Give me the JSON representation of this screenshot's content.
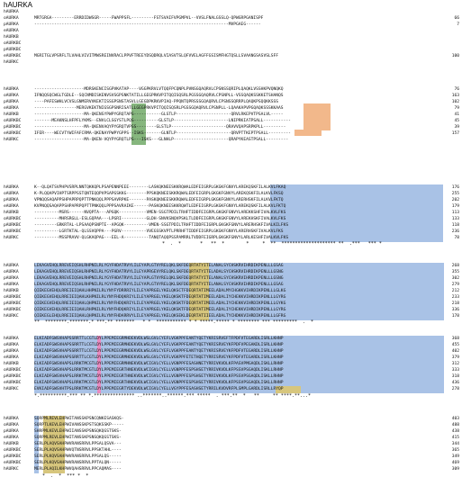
{
  "title": "hAURKA",
  "colors": {
    "blue": "#a9c2e6",
    "green": "#86b67e",
    "orange": "#f2b88b",
    "khaki": "#d7c67d",
    "pink": "#e98bc0"
  },
  "blocks": [
    {
      "rows": [
        {
          "name": "hAURKA",
          "seq": "",
          "num": ""
        },
        {
          "name": "oAURKA",
          "seq": "MRTGRGA---------ERRDIDWSGR-----FWAPPSFL---------FSTSVAIFVPGMPVL--VVSLFNALGSSLQ-QPWGRPGANISPF",
          "num": "66"
        },
        {
          "name": "pAURKA",
          "seq": "------------------------------------------------------------------------------MVPGAEG------",
          "num": "7"
        },
        {
          "name": "eAURKA",
          "seq": "",
          "num": ""
        },
        {
          "name": "hAURKB",
          "seq": "",
          "num": ""
        },
        {
          "name": "oAURKBC",
          "seq": "",
          "num": ""
        },
        {
          "name": "pAURKBC",
          "seq": "",
          "num": ""
        },
        {
          "name": "eAURKBC",
          "seq": "MGRITGLVPSRFLTLVAHLVIVITMWSREINVRACLPPVFTREEYDSQDRQLVIASVTSLQFVVELAGFFGSISMFHGTQSLLSVAANGSASVSLSFF",
          "num": "100"
        },
        {
          "name": "hAURKC",
          "seq": "",
          "num": ""
        }
      ],
      "consensus": ""
    },
    {
      "rows": [
        {
          "name": "hAURKA",
          "seq": "--------------------MDRSKENCISGPVKATAP----VGGPKRVLVTQQFPCQNPLPVNSGQAQRVLCPSNSSQRIPLQAQKLVSSHKPVQNQKQ",
          "num": "76"
        },
        {
          "name": "oAURKA",
          "seq": "IFNQQSQCWGLTGDLE--SQCNMDISKENVSVSGPSNKTATILLGEGPRKVPITQQISQSRLPGSSGQAQRVLCPSNPLL-VSSQAQKSSKKETSHANQS",
          "num": "163"
        },
        {
          "name": "pAURKA",
          "seq": "----PAFESWHLVCVSLGNMERVVKEKTISSGPSNSTASVLLGEGDPKRKVPIAQ-PPQNTQPRSSSGQAQRVLCPSNSSQRRPLQAQKPSQQKKSSS",
          "num": "102"
        },
        {
          "name": "eAURKA",
          "seq": "-----------------MERGVKEKTNIGSGPSNRISATLLGEGPRKVPITQQISQSRLPGSSGQAQRVLCPSNPLL-LQAAKAPVPGQAQKSSSKKAAS",
          "num": "79"
        },
        {
          "name": "hAURKB",
          "seq": "--------------------MA-QKENSYPWPYGRQTAPS-----------GLSTLP----------------------QRVLRKEPVTPSALVL-----",
          "num": "41"
        },
        {
          "name": "oAURKBC",
          "seq": "-------MEAKNSLHFPFLYKMS--ENVLCLSGYSTLPQS----------GLSTLP----------------------LNIPRKIATPSALL-----------",
          "num": "45"
        },
        {
          "name": "pAURKBC",
          "seq": "--------------------MA-QKENVAQYPYGRQTVPSS--------GLSTLP----------------------QRAVVQAPSRPKPLL---------",
          "num": "39"
        },
        {
          "name": "eAURKBC",
          "seq": "IFER----WECVTYWIFAFCRMA-QKENAYPWPYGPPS--ISKS-------GLNTLP----------------------QRVPTTKEPTPSALL---------",
          "num": "157"
        },
        {
          "name": "hAURKC",
          "seq": "--------------------MA-QKEN-VQYPYGRQTLPS---ISKS---GLNHLP----------------------QRAPYKEASTPSALL---------",
          "num": ""
        }
      ],
      "consensus": ""
    },
    {
      "rows": [
        {
          "name": "hAURKA",
          "seq": "K--QLQATSVPHPVSRPLNNTQKKQPLPSAPENNPEEE--------LASKQKNEESKKRQWALEDFEIGRPLGKGKFGNVYLAREKQSKFILALKVLFKAQ",
          "num": "176"
        },
        {
          "name": "oAURKA",
          "seq": "K-PLQQAPVIHPTSRPPSSTQNTEQQPVPSAPGSKKG--------PPSKQKNEESKKRQWALEDFEIGRPLGKGKFGNVYLAREKQSKFILALKVLFKSQ",
          "num": "255"
        },
        {
          "name": "pAURKA",
          "seq": "VPNQQSAQAPPSHPAPRPQPTTPNKQQLPPPSAVRPKE-------PASKQKNEESKKRQWALEDFEIGRPLGKGKFGNVYLARERHSKFILALKVLFKTQ",
          "num": "202"
        },
        {
          "name": "eAURKA",
          "seq": "KVPNQQSAQAPPSHPAPRPQPTTPNKQQLPPPSAVRAIKE------PASKQKNEESKKRQWTLEDFEIGRPLGKGKFGNVYLAREKQSKFILALKVLFKTQ",
          "num": "179"
        },
        {
          "name": "hAURKB",
          "seq": "----------MSRS------NVQPTA---APGQK-----------VMEN-SSGTPDILTRHFTIDDFEIGRPLGKGKFGNVYLAREKKSHFIVALKVLFKS",
          "num": "113"
        },
        {
          "name": "oAURKBC",
          "seq": "----------MHRSRGLL-ESLGQPAA---LPGRI----------GLDH-SNVKSNQVPSKLTLDDFEIGRPLGKGKFGNVYLAREKHSKFIVALKVLFKS",
          "num": "133"
        },
        {
          "name": "pAURKBC",
          "seq": "---------GRKRTAL-LPSAAQPSNPTE--APGQK----------VMEN-SSGTPDILTRHFTIDDFEIGRPLGKGKFGNVYLARERHSKFIVALKILFKS",
          "num": "118"
        },
        {
          "name": "eAURKBC",
          "seq": "----------LGRTKTAL-QLSSVQPPA---PGRV----------VVEGSSKVPTLPRRHFTIDDFEIGRPLGKGKFGNVYLARERHSKFIVALKVLFKS",
          "num": "236"
        },
        {
          "name": "hAURKC",
          "seq": "----------MSSPRAVV-QLGKAQPAG---EEL-A----------TANQTAQQPSSPAMRRLTVDDFEIGRPLGKGKFGNVYLARLKESHFIVALKVLFKS",
          "num": "78"
        }
      ],
      "consensus": "*  .  *       *   **  *        *     *  **  ******************** **  .***   *** *"
    },
    {
      "rows": [
        {
          "name": "hAURKA",
          "seq": "LEKAGVEHQLRREVEIQSHLRHPNILRLYGYFHDATRVYLILEYAPLGTVYRELQKLSKFDEQRTATYITELANALSYCHSKRVIHRDIKPENLLLGSAG",
          "num": "268"
        },
        {
          "name": "oAURKA",
          "seq": "LEKAGVEHQLRREVEIQSHLRHPNILRLYGYFHDATRVYLILEYAPRGEVYRELQKLSKFDEQRTATYITELADALSYCHSKRVIHRDIKPENLLLGSNG",
          "num": "355"
        },
        {
          "name": "pAURKA",
          "seq": "LEKAGVEHQLRREVEIQSHLRHPNILRLYGYFHDATRVYLILEYAPLGTVYRELQKLSKFDEQRTATYITELANALSYCHSKRVIHRDIKPENLLLGSNG",
          "num": "302"
        },
        {
          "name": "eAURKA",
          "seq": "LEKAGVEHQLRREVEIQSHLRHPNILRLYGYFHDATRVYLILEYAPLGTVYRELQKLSKFDEQRTATYITELANALSYCHSKRVIHRDIKPENLLLGSAG",
          "num": "279"
        },
        {
          "name": "hAURKB",
          "seq": "QIEKEGVEHQLRREIEIQAHLHHPNILRLYNYFYDRRRIYLILEYAPRGELYKELQKSCTFDEQRTATIMEELADALMYCHGKKVIHRDIKPENLLLGLKG",
          "num": "212"
        },
        {
          "name": "oAURKBC",
          "seq": "QIEKEGVEHQLRREIEIQAHLKHPNILRLYNYFHDQKRIYLILEYAPRGELYKELQKSKTFDEQRTATIMEELADALIYCHEKKVIHRDIKPENLLLGYRG",
          "num": "233"
        },
        {
          "name": "pAURKBC",
          "seq": "QIEKEGVEHQLRREIEIQAHLQHPNILRLYNYFHDQKRIYLILEYAPRGELYKELQKSKTFDEQRTATIMEELADALIYCHEKKVIHRDIKPENLLLGYKG",
          "num": "218"
        },
        {
          "name": "eAURKBC",
          "seq": "QIEKEGVEHQLRREIEIQAHLRHPNILRLYNYFHDQKRIYLILEYAPRGELYKELQKSKTFDEQRTATIMEELADALIYCHEKKVIHRDIKPENLLLGYRG",
          "num": "336"
        },
        {
          "name": "hAURKC",
          "seq": "QIEKEGLEHQLRREIEIQAHLQHPNILRLYNYFHDARRVYLILEYAPRGELYKELQKSEKLDEQRTATIIEELADALTYCHDKKVIHRDIKPENLLLGFRG",
          "num": "178"
        }
      ],
      "consensus": "**  ********.*******.* ***.** *******   * *  *********** * * *****.***** * ******** *** *********  .  *"
    },
    {
      "rows": [
        {
          "name": "hAURKA",
          "seq": "ELKIADFGWSVHAPSSRRTTLCGTLDYLPPEMIEGRMHDEKVDLWSLGVLCYEFLVGKPPFEANTYQETYKRISRVEFTFPDFVTEGARDLISRLLKHNP",
          "num": "368"
        },
        {
          "name": "oAURKA",
          "seq": "ELKIADFGWSVHAPSSRRTTLCGTLDYLPPEMIEGRMHDEKVDLWSLGVLCYEFLVGKPPFEANTYQETYKRISRVEYKFPDFVPEGAKDLISRLLKHNP",
          "num": "455"
        },
        {
          "name": "pAURKA",
          "seq": "ELKIADFGWSVHAPSSRRTTLCGTLDYLPPEMIEGRMHDEKVDLWSLGVLCYEFLVGKPPFEANTYQETYKRISRVEYKFPDFVTEGARDLISRLLKHNP",
          "num": "402"
        },
        {
          "name": "eAURKA",
          "seq": "ELKIADFGWSVHAPSSRRTTLCGTLDYLPPEMIEGRMHDEKVDLWSLGVLCYEFLVGKPPFETETHQETYRRISRVEYKFPDFVTEGARDLISRLLKHNP",
          "num": "379"
        },
        {
          "name": "hAURKB",
          "seq": "ELKIADFGWSVHAPSLRRKTMCGTLDYLPPEMIEGRMHNEKVDLWCIGVLCYELLVGNPPFESASHNETYRRIVKVDLKFPASVPMGAQDLISKLLRHNP",
          "num": "312"
        },
        {
          "name": "oAURKBC",
          "seq": "ELKIADFGWSVHAPSLRRKTMCGTLDYLPPEMIEGRTHNEKVDLWCIGVLCYELLVGNPPFESPSHSETYRRIVKVDLKFPSSVPSGAQDLISKLLRHNP",
          "num": "333"
        },
        {
          "name": "pAURKBC",
          "seq": "ELKIADFGWSVHAPSLRRKTMCGTLDYLPPEMIEGRTHNEKVDLWCIGVLCYELLVGNPPFESPSHSETYRRIVKVDLKFPSSVPSGAQDLISKLLRHNP",
          "num": "318"
        },
        {
          "name": "eAURKBC",
          "seq": "ELKIADFGWSVHAPSLRRKTMCGTLDYLPPEMIEGRTHNEKVDLWCIGVLCYELLVGNPPFESPSHSETYRRIVKVDLKFPSSVPSGAQDLISKLLRHNP",
          "num": "436"
        },
        {
          "name": "hAURKC",
          "seq": "EVKIADFGWSVHTPSLRRKTMCGTLDYLPPEMIEGRTYDEKVDLWCIGVLCYELLVGYPPFESASHSETYRRILKVDVRFPLSMPLGARDLISRLLRYQP",
          "num": "278"
        }
      ],
      "consensus": "*.**********.*** ** *.*************** ..*******..******.*** *****  . ***.**  *   **     ** ****.**...*"
    },
    {
      "rows": [
        {
          "name": "hAURKA",
          "seq": "SQRPMLREVLEHPWITANSSKPSNCQNKESASKQS-",
          "num": "403"
        },
        {
          "name": "oAURKA",
          "seq": "SQRPTLKEVLEHPWIVANSSKPSTSQKSSKP-----",
          "num": "488"
        },
        {
          "name": "pAURKA",
          "seq": "SHRPMLKEVLEHPWIIANSSKPSNSQKQGSTSKS-",
          "num": "438"
        },
        {
          "name": "eAURKA",
          "seq": "SQRPMLREVLEHPWITANSSKPSNSQKQGSTSKS-",
          "num": "415"
        },
        {
          "name": "hAURKB",
          "seq": "SERLPLAQVSAHPWVRANSRRVLPPSALQSVA---",
          "num": "344"
        },
        {
          "name": "oAURKBC",
          "seq": "SERLPLAQVSAHPWVQTNSRRVLPPSKTAHL----",
          "num": "365"
        },
        {
          "name": "pAURKBC",
          "seq": "SERLPLKQVSAHPWVRANSRRVLPPSALQS-----",
          "num": "349"
        },
        {
          "name": "eAURKBC",
          "seq": "SERLPLKQVSAHPWVRANSRRVLPPTALQN-----",
          "num": "469"
        },
        {
          "name": "hAURKC",
          "seq": "MERLPLAQILKHPWVQAHSRRVLPPCAQMAS----",
          "num": "309"
        }
      ],
      "consensus": "   *  .  *  *** *  *"
    }
  ]
}
